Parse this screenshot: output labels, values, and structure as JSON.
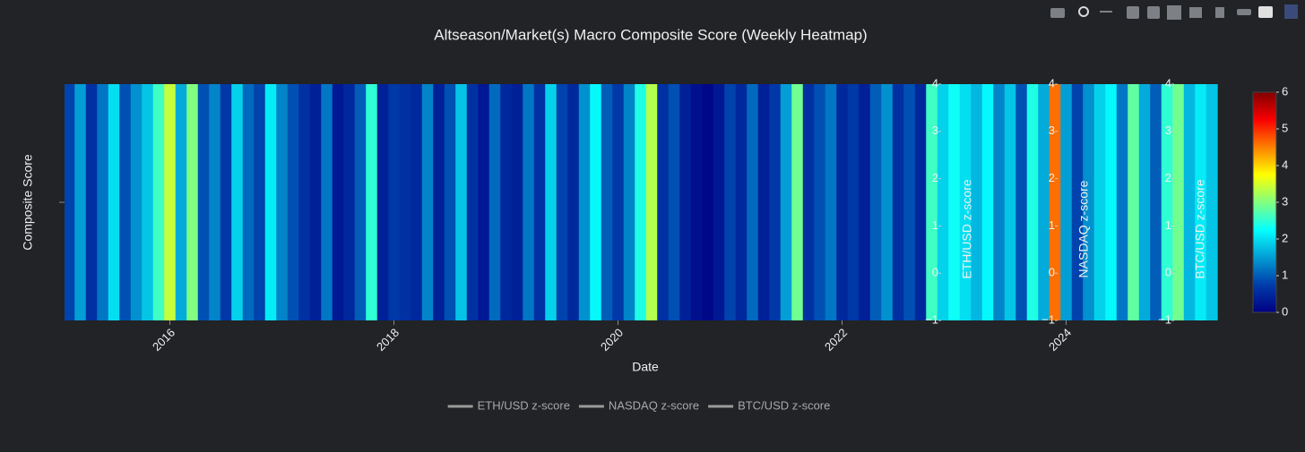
{
  "chart_data": {
    "type": "heatmap",
    "title": "Altseason/Market(s) Macro Composite Score (Weekly Heatmap)",
    "x_label": "Date",
    "y_label": "Composite Score",
    "x": [
      2015.1,
      2015.2,
      2015.3,
      2015.4,
      2015.5,
      2015.6,
      2015.7,
      2015.8,
      2015.9,
      2016.0,
      2016.1,
      2016.2,
      2016.3,
      2016.4,
      2016.5,
      2016.6,
      2016.7,
      2016.8,
      2016.9,
      2017.0,
      2017.1,
      2017.2,
      2017.3,
      2017.4,
      2017.5,
      2017.6,
      2017.7,
      2017.8,
      2017.9,
      2018.0,
      2018.1,
      2018.2,
      2018.3,
      2018.4,
      2018.5,
      2018.6,
      2018.7,
      2018.8,
      2018.9,
      2019.0,
      2019.1,
      2019.2,
      2019.3,
      2019.4,
      2019.5,
      2019.6,
      2019.7,
      2019.8,
      2019.9,
      2020.0,
      2020.1,
      2020.2,
      2020.3,
      2020.4,
      2020.5,
      2020.6,
      2020.7,
      2020.8,
      2020.9,
      2021.0,
      2021.1,
      2021.2,
      2021.3,
      2021.4,
      2021.5,
      2021.6,
      2021.7,
      2021.8,
      2021.9,
      2022.0,
      2022.1,
      2022.2,
      2022.3,
      2022.4,
      2022.5,
      2022.6,
      2022.7,
      2022.8,
      2022.9,
      2023.0,
      2023.1,
      2023.2,
      2023.3,
      2023.4,
      2023.5,
      2023.6,
      2023.7,
      2023.8,
      2023.9,
      2024.0,
      2024.1,
      2024.2,
      2024.3,
      2024.4,
      2024.5,
      2024.6,
      2024.7,
      2024.8,
      2024.9,
      2025.0,
      2025.1,
      2025.2,
      2025.3
    ],
    "values": [
      0.8,
      1.5,
      0.6,
      1.2,
      2.0,
      0.9,
      1.4,
      1.8,
      2.6,
      3.4,
      1.6,
      3.0,
      0.9,
      1.3,
      0.7,
      1.9,
      1.1,
      0.8,
      2.1,
      1.3,
      0.9,
      0.6,
      0.4,
      1.2,
      0.3,
      0.5,
      1.0,
      2.5,
      0.4,
      0.7,
      0.6,
      0.5,
      1.3,
      0.4,
      0.9,
      1.8,
      0.6,
      0.3,
      1.1,
      0.5,
      0.4,
      1.2,
      0.6,
      1.9,
      0.8,
      0.5,
      1.4,
      2.2,
      1.0,
      0.7,
      1.3,
      2.4,
      3.3,
      0.6,
      0.9,
      0.4,
      0.2,
      0.1,
      0.3,
      0.8,
      0.5,
      1.1,
      0.4,
      0.7,
      1.5,
      2.9,
      0.6,
      0.9,
      1.2,
      0.5,
      0.7,
      0.4,
      1.0,
      1.4,
      0.6,
      0.9,
      0.5,
      2.6,
      1.9,
      2.3,
      2.0,
      1.7,
      2.2,
      1.3,
      1.8,
      0.9,
      2.4,
      1.6,
      4.6,
      1.5,
      0.8,
      1.4,
      1.9,
      2.2,
      1.2,
      2.8,
      1.6,
      1.0,
      2.5,
      2.9,
      1.7,
      2.1,
      1.8
    ],
    "xlim": [
      2015.06,
      2025.38
    ],
    "xticks": [
      2016,
      2018,
      2020,
      2022,
      2024
    ],
    "zlim": [
      0,
      6
    ],
    "colorbar_ticks": [
      0,
      1,
      2,
      3,
      4,
      5,
      6
    ],
    "colorscale": [
      [
        0,
        "#000083"
      ],
      [
        0.125,
        "#003caa"
      ],
      [
        0.375,
        "#05ffff"
      ],
      [
        0.625,
        "#ffff00"
      ],
      [
        0.875,
        "#fa0000"
      ],
      [
        1,
        "#800000"
      ]
    ],
    "y2lim": [
      -1,
      4
    ],
    "y2ticks": [
      {
        "value": -1,
        "label": "−1"
      },
      0,
      1,
      2,
      3,
      4
    ],
    "series": [
      {
        "name": "ETH/USD z-score",
        "color": "#9a9a9a",
        "axis": "y2"
      },
      {
        "name": "NASDAQ z-score",
        "color": "#9a9a9a",
        "axis": "y2"
      },
      {
        "name": "BTC/USD z-score",
        "color": "#9a9a9a",
        "axis": "y2"
      }
    ]
  }
}
